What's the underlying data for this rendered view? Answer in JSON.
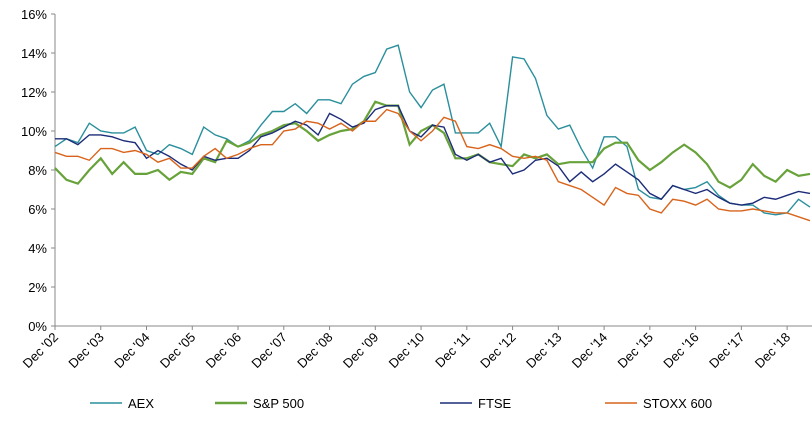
{
  "chart_data": {
    "type": "line",
    "categories": [
      "Dec '02",
      null,
      null,
      null,
      "Dec '03",
      null,
      null,
      null,
      "Dec '04",
      null,
      null,
      null,
      "Dec '05",
      null,
      null,
      null,
      "Dec '06",
      null,
      null,
      null,
      "Dec '07",
      null,
      null,
      null,
      "Dec '08",
      null,
      null,
      null,
      "Dec '09",
      null,
      null,
      null,
      "Dec '10",
      null,
      null,
      null,
      "Dec '11",
      null,
      null,
      null,
      "Dec '12",
      null,
      null,
      null,
      "Dec '13",
      null,
      null,
      null,
      "Dec '14",
      null,
      null,
      null,
      "Dec '15",
      null,
      null,
      null,
      "Dec '16",
      null,
      null,
      null,
      "Dec '17",
      null,
      null,
      null,
      "Dec '18",
      null,
      null
    ],
    "series": [
      {
        "name": "AEX",
        "color": "#2a8f9c",
        "values": [
          9.2,
          9.6,
          9.4,
          10.4,
          10.0,
          9.9,
          9.9,
          10.2,
          9.0,
          8.8,
          9.3,
          9.1,
          8.8,
          10.2,
          9.8,
          9.6,
          9.2,
          9.5,
          10.3,
          11.0,
          11.0,
          11.4,
          10.9,
          11.6,
          11.6,
          11.4,
          12.4,
          12.8,
          13.0,
          14.2,
          14.4,
          12.0,
          11.2,
          12.1,
          12.4,
          9.9,
          9.9,
          9.9,
          10.4,
          9.2,
          13.8,
          13.7,
          12.7,
          10.8,
          10.1,
          10.3,
          9.1,
          8.1,
          9.7,
          9.7,
          9.2,
          7.0,
          6.6,
          6.5,
          7.2,
          7.0,
          7.1,
          7.4,
          6.7,
          6.3,
          6.2,
          6.2,
          5.8,
          5.7,
          5.8,
          6.5,
          6.1
        ]
      },
      {
        "name": "S&P 500",
        "color": "#67a23a",
        "values": [
          8.1,
          7.5,
          7.3,
          8.0,
          8.6,
          7.8,
          8.4,
          7.8,
          7.8,
          8.0,
          7.5,
          7.9,
          7.8,
          8.6,
          8.4,
          9.5,
          9.2,
          9.4,
          9.8,
          10.0,
          10.3,
          10.4,
          10.0,
          9.5,
          9.8,
          10.0,
          10.1,
          10.5,
          11.5,
          11.3,
          11.3,
          9.3,
          10.0,
          10.3,
          9.9,
          8.6,
          8.6,
          8.8,
          8.4,
          8.3,
          8.2,
          8.8,
          8.6,
          8.8,
          8.3,
          8.4,
          8.4,
          8.4,
          9.1,
          9.4,
          9.4,
          8.5,
          8.0,
          8.4,
          8.9,
          9.3,
          8.9,
          8.3,
          7.4,
          7.1,
          7.5,
          8.3,
          7.7,
          7.4,
          8.0,
          7.7,
          7.8
        ]
      },
      {
        "name": "FTSE",
        "color": "#1c2c78",
        "values": [
          9.6,
          9.6,
          9.3,
          9.8,
          9.8,
          9.7,
          9.5,
          9.4,
          8.6,
          9.0,
          8.7,
          8.3,
          8.0,
          8.7,
          8.5,
          8.6,
          8.6,
          9.0,
          9.7,
          9.9,
          10.2,
          10.5,
          10.3,
          9.8,
          10.9,
          10.6,
          10.2,
          10.4,
          11.1,
          11.3,
          11.3,
          10.0,
          9.7,
          10.3,
          10.2,
          8.8,
          8.5,
          8.8,
          8.4,
          8.6,
          7.8,
          8.0,
          8.5,
          8.6,
          8.2,
          7.4,
          7.9,
          7.4,
          7.8,
          8.3,
          7.9,
          7.5,
          6.8,
          6.5,
          7.2,
          7.0,
          6.8,
          7.0,
          6.6,
          6.3,
          6.2,
          6.3,
          6.6,
          6.5,
          6.7,
          6.9,
          6.8
        ]
      },
      {
        "name": "STOXX 600",
        "color": "#d8641c",
        "values": [
          8.9,
          8.7,
          8.7,
          8.5,
          9.1,
          9.1,
          8.9,
          9.0,
          8.8,
          8.4,
          8.6,
          8.1,
          8.1,
          8.7,
          9.1,
          8.6,
          8.8,
          9.1,
          9.3,
          9.3,
          10.0,
          10.1,
          10.5,
          10.4,
          10.1,
          10.4,
          10.0,
          10.5,
          10.5,
          11.1,
          10.9,
          10.0,
          9.5,
          10.0,
          10.7,
          10.5,
          9.2,
          9.1,
          9.3,
          9.1,
          8.7,
          8.6,
          8.7,
          8.5,
          7.4,
          7.2,
          7.0,
          6.6,
          6.2,
          7.1,
          6.8,
          6.7,
          6.0,
          5.8,
          6.5,
          6.4,
          6.2,
          6.5,
          6.0,
          5.9,
          5.9,
          6.0,
          5.9,
          5.8,
          5.8,
          5.6,
          5.4
        ]
      }
    ],
    "ylim": [
      0,
      16
    ],
    "yticks": [
      {
        "value": 0,
        "label": "0%"
      },
      {
        "value": 2,
        "label": "2%"
      },
      {
        "value": 4,
        "label": "4%"
      },
      {
        "value": 6,
        "label": "6%"
      },
      {
        "value": 8,
        "label": "8%"
      },
      {
        "value": 10,
        "label": "10%"
      },
      {
        "value": 12,
        "label": "12%"
      },
      {
        "value": 14,
        "label": "14%"
      },
      {
        "value": 16,
        "label": "16%"
      }
    ],
    "legend": "bottom"
  }
}
